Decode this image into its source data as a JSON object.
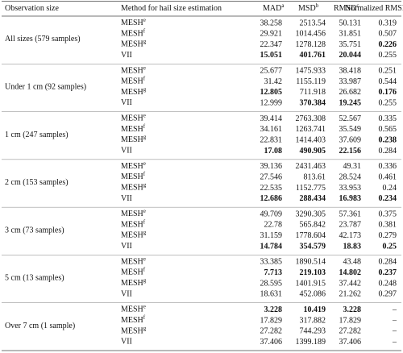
{
  "table": {
    "columns": [
      {
        "label": "Observation size"
      },
      {
        "label": "Method for hail size estimation"
      },
      {
        "label": "MAD",
        "sup": "a"
      },
      {
        "label": "MSD",
        "sup": "b"
      },
      {
        "label": "RMSD",
        "sup": "c"
      },
      {
        "label": "Normalized RMSD",
        "sup": "d"
      }
    ],
    "groups": [
      {
        "label": "All sizes (579 samples)",
        "rows": [
          {
            "method": "MESH",
            "sup": "e",
            "values": [
              38.258,
              2513.54,
              50.131,
              0.319
            ]
          },
          {
            "method": "MESH",
            "sup": "f",
            "values": [
              29.921,
              1014.456,
              31.851,
              0.507
            ]
          },
          {
            "method": "MESH",
            "sup": "g",
            "values": [
              22.347,
              1278.128,
              35.751,
              0.226
            ],
            "bold": [
              3
            ]
          },
          {
            "method": "VII",
            "values": [
              15.051,
              401.761,
              20.044,
              0.255
            ],
            "bold": [
              0,
              1,
              2
            ]
          }
        ]
      },
      {
        "label": "Under 1 cm (92 samples)",
        "rows": [
          {
            "method": "MESH",
            "sup": "e",
            "values": [
              25.677,
              1475.933,
              38.418,
              0.251
            ]
          },
          {
            "method": "MESH",
            "sup": "f",
            "values": [
              31.42,
              1155.119,
              33.987,
              0.544
            ]
          },
          {
            "method": "MESH",
            "sup": "g",
            "values": [
              12.805,
              711.918,
              26.682,
              0.176
            ],
            "bold": [
              0,
              3
            ]
          },
          {
            "method": "VII",
            "values": [
              12.999,
              370.384,
              19.245,
              0.255
            ],
            "bold": [
              1,
              2
            ]
          }
        ]
      },
      {
        "label": "1 cm (247 samples)",
        "rows": [
          {
            "method": "MESH",
            "sup": "e",
            "values": [
              39.414,
              2763.308,
              52.567,
              0.335
            ]
          },
          {
            "method": "MESH",
            "sup": "f",
            "values": [
              34.161,
              1263.741,
              35.549,
              0.565
            ]
          },
          {
            "method": "MESH",
            "sup": "g",
            "values": [
              22.831,
              1414.403,
              37.609,
              0.238
            ],
            "bold": [
              3
            ]
          },
          {
            "method": "VII",
            "values": [
              17.08,
              490.905,
              22.156,
              0.284
            ],
            "bold": [
              0,
              1,
              2
            ]
          }
        ]
      },
      {
        "label": "2 cm (153 samples)",
        "rows": [
          {
            "method": "MESH",
            "sup": "e",
            "values": [
              39.136,
              2431.463,
              49.31,
              0.336
            ]
          },
          {
            "method": "MESH",
            "sup": "f",
            "values": [
              27.546,
              813.61,
              28.524,
              0.461
            ]
          },
          {
            "method": "MESH",
            "sup": "g",
            "values": [
              22.535,
              1152.775,
              33.953,
              0.24
            ]
          },
          {
            "method": "VII",
            "values": [
              12.686,
              288.434,
              16.983,
              0.234
            ],
            "bold": [
              0,
              1,
              2,
              3
            ]
          }
        ]
      },
      {
        "label": "3 cm (73 samples)",
        "rows": [
          {
            "method": "MESH",
            "sup": "e",
            "values": [
              49.709,
              3290.305,
              57.361,
              0.375
            ]
          },
          {
            "method": "MESH",
            "sup": "f",
            "values": [
              22.78,
              565.842,
              23.787,
              0.381
            ]
          },
          {
            "method": "MESH",
            "sup": "g",
            "values": [
              31.159,
              1778.604,
              42.173,
              0.279
            ]
          },
          {
            "method": "VII",
            "values": [
              14.784,
              354.579,
              18.83,
              0.25
            ],
            "bold": [
              0,
              1,
              2,
              3
            ]
          }
        ]
      },
      {
        "label": "5 cm (13 samples)",
        "rows": [
          {
            "method": "MESH",
            "sup": "e",
            "values": [
              33.385,
              1890.514,
              43.48,
              0.284
            ]
          },
          {
            "method": "MESH",
            "sup": "f",
            "values": [
              7.713,
              219.103,
              14.802,
              0.237
            ],
            "bold": [
              0,
              1,
              2,
              3
            ]
          },
          {
            "method": "MESH",
            "sup": "g",
            "values": [
              28.595,
              1401.915,
              37.442,
              0.248
            ]
          },
          {
            "method": "VII",
            "values": [
              18.631,
              452.086,
              21.262,
              0.297
            ]
          }
        ]
      },
      {
        "label": "Over 7 cm (1 sample)",
        "rows": [
          {
            "method": "MESH",
            "sup": "e",
            "values": [
              3.228,
              10.419,
              3.228,
              "–"
            ],
            "bold": [
              0,
              1,
              2
            ]
          },
          {
            "method": "MESH",
            "sup": "f",
            "values": [
              17.829,
              317.882,
              17.829,
              "–"
            ]
          },
          {
            "method": "MESH",
            "sup": "g",
            "values": [
              27.282,
              744.293,
              27.282,
              "–"
            ]
          },
          {
            "method": "VII",
            "values": [
              37.406,
              1399.189,
              37.406,
              "–"
            ]
          }
        ]
      }
    ]
  }
}
